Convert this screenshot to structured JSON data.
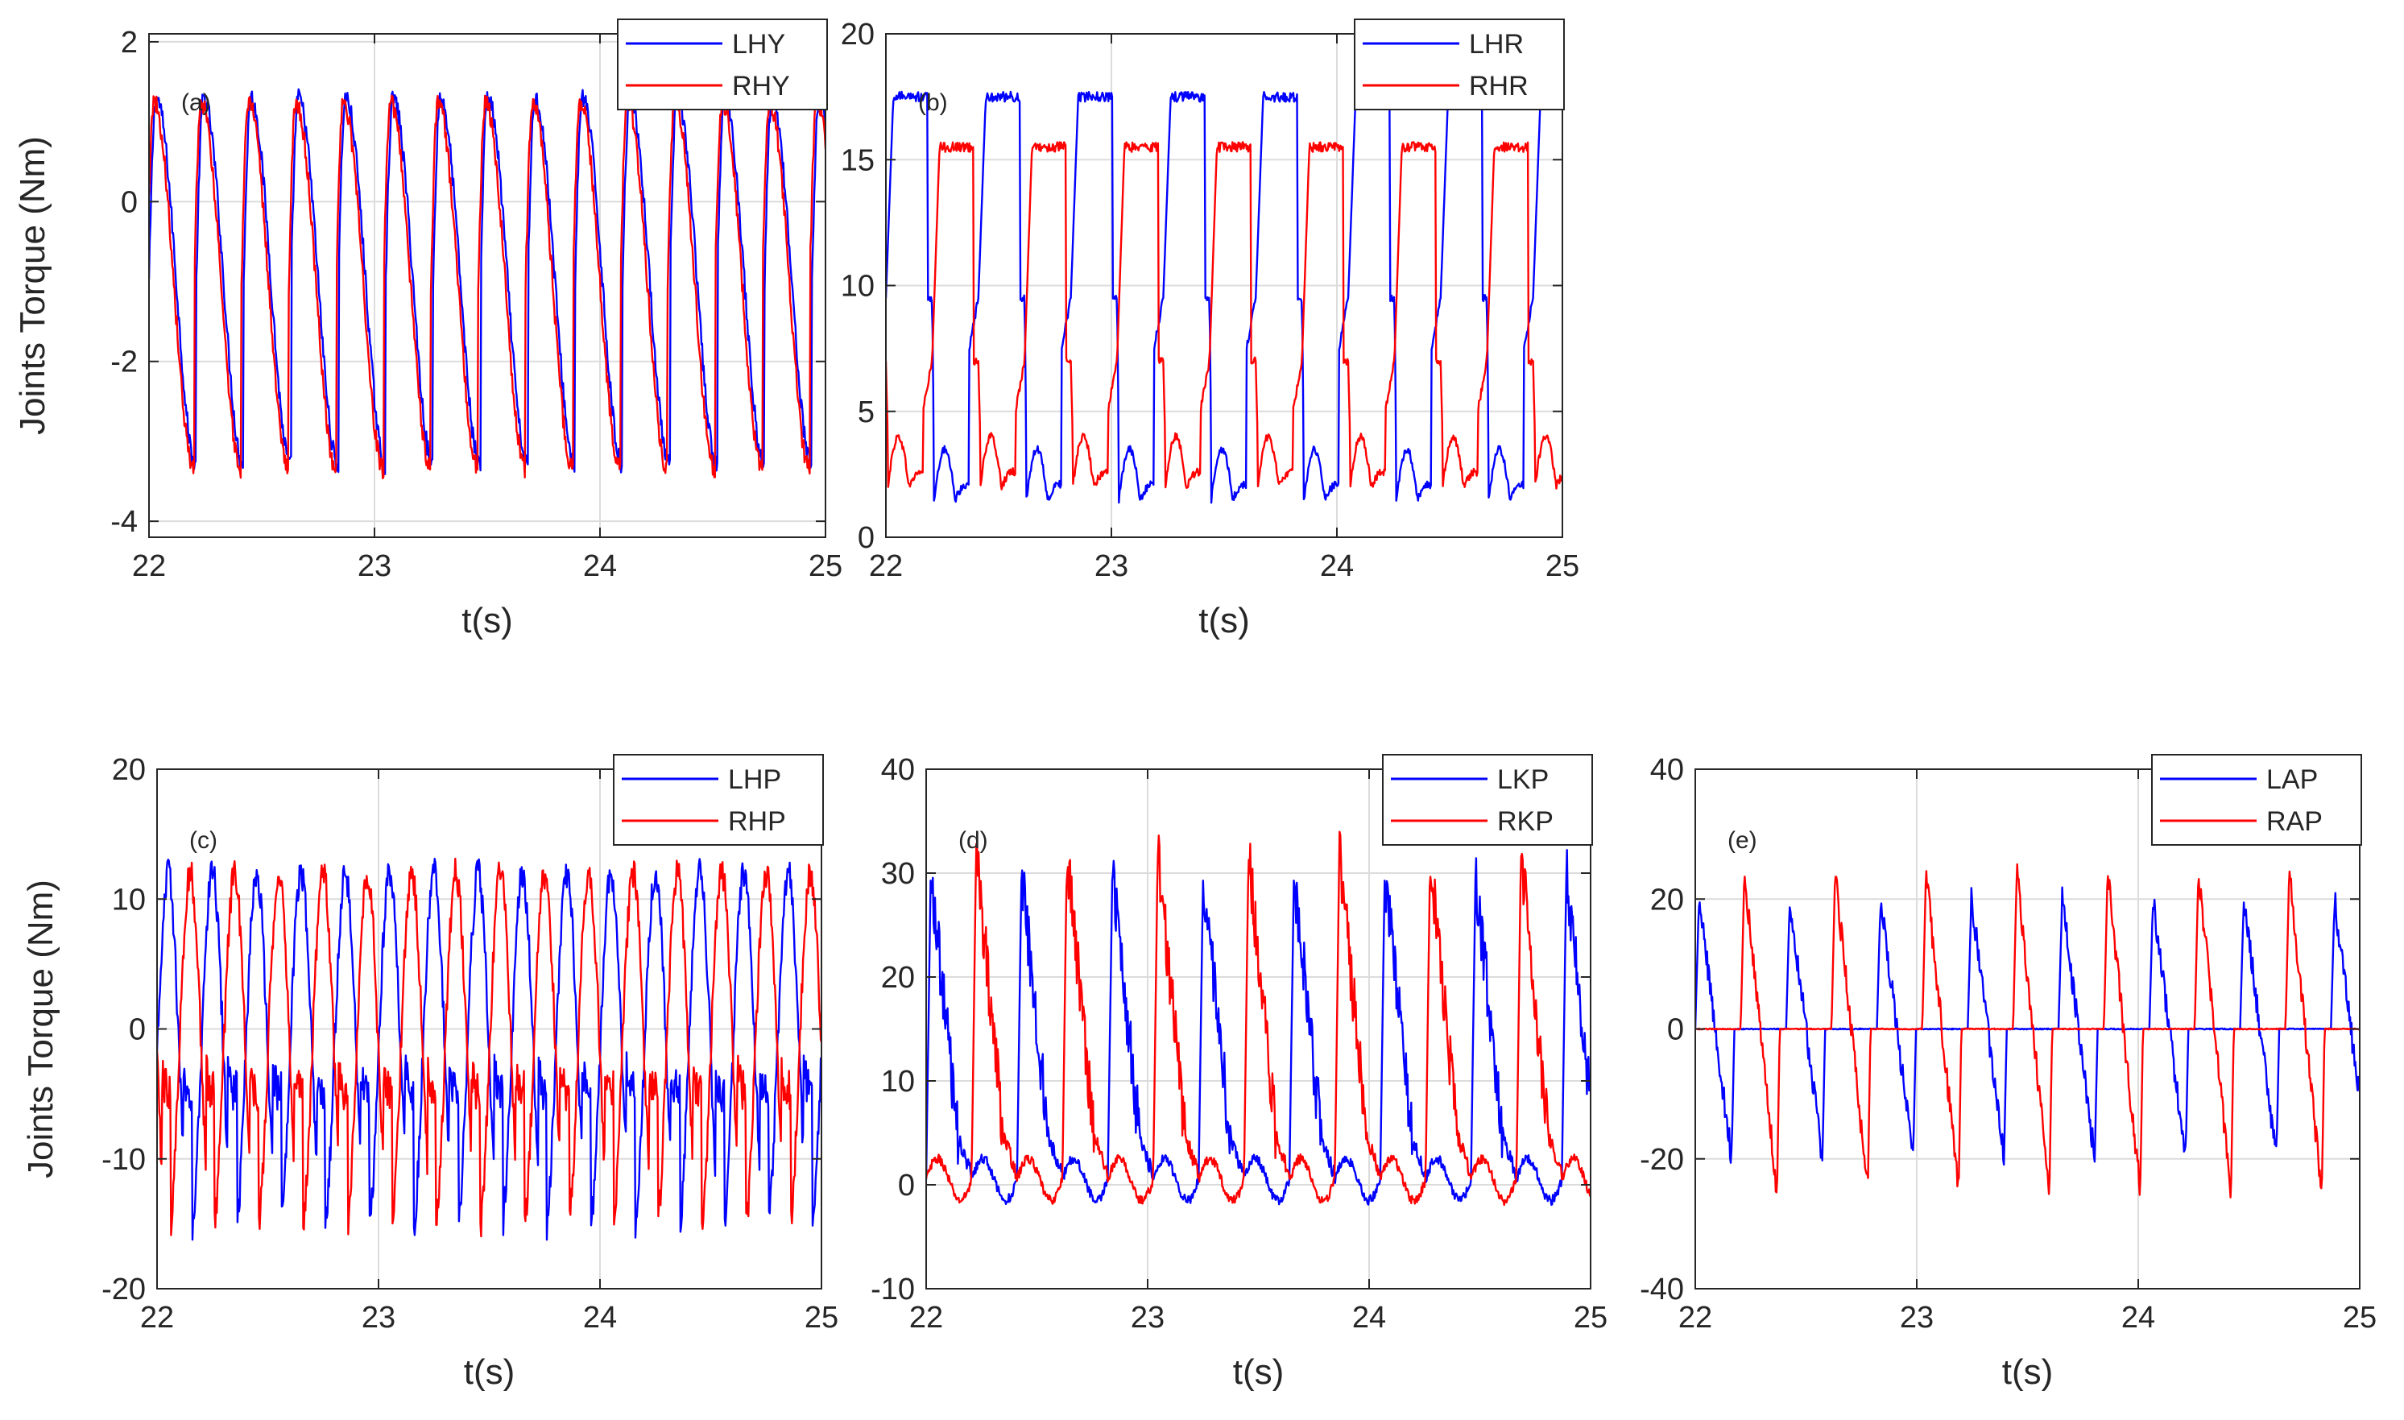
{
  "chart_data": [
    {
      "id": "a",
      "type": "line",
      "panel_label": "(a)",
      "xlabel": "t(s)",
      "ylabel": "Joints Torque (Nm)",
      "xlim": [
        22,
        25
      ],
      "ylim": [
        -4.2,
        2.1
      ],
      "xticks": [
        22,
        23,
        24,
        25
      ],
      "yticks": [
        -4,
        -2,
        0,
        2
      ],
      "grid": true,
      "legend_location": "top-right",
      "series": [
        {
          "name": "LHY",
          "color": "#0000ff",
          "pattern": "hip_yaw",
          "phase": 0.0,
          "amplitude": 2.3,
          "offset": -1.0,
          "period": 0.21,
          "noise": 0.12
        },
        {
          "name": "RHY",
          "color": "#ff0000",
          "pattern": "hip_yaw",
          "phase": 0.01,
          "amplitude": 2.3,
          "offset": -1.05,
          "period": 0.21,
          "noise": 0.12
        }
      ]
    },
    {
      "id": "b",
      "type": "line",
      "panel_label": "(b)",
      "xlabel": "t(s)",
      "ylabel": "",
      "xlim": [
        22,
        25
      ],
      "ylim": [
        0,
        20
      ],
      "xticks": [
        22,
        23,
        24,
        25
      ],
      "yticks": [
        0,
        5,
        10,
        15,
        20
      ],
      "grid": true,
      "legend_location": "top-right",
      "series": [
        {
          "name": "LHR",
          "color": "#0000ff",
          "pattern": "hip_roll",
          "phase": 0.0,
          "low": 1.5,
          "mid": 9.5,
          "high": 17.5,
          "period": 0.41,
          "noise": 0.5
        },
        {
          "name": "RHR",
          "color": "#ff0000",
          "pattern": "hip_roll",
          "phase": 0.205,
          "low": 2.0,
          "mid": 7.0,
          "high": 15.5,
          "period": 0.41,
          "noise": 0.5
        }
      ]
    },
    {
      "id": "c",
      "type": "line",
      "panel_label": "(c)",
      "xlabel": "t(s)",
      "ylabel": "Joints Torque (Nm)",
      "xlim": [
        22,
        25
      ],
      "ylim": [
        -20,
        20
      ],
      "xticks": [
        22,
        23,
        24,
        25
      ],
      "yticks": [
        -20,
        -10,
        0,
        10,
        20
      ],
      "grid": true,
      "legend_location": "top-right",
      "series": [
        {
          "name": "LHP",
          "color": "#0000ff",
          "pattern": "hip_pitch",
          "phase": 0.0,
          "amplitude": 14.0,
          "offset": -2.0,
          "period": 0.2,
          "noise": 1.2
        },
        {
          "name": "RHP",
          "color": "#ff0000",
          "pattern": "hip_pitch",
          "phase": 0.1,
          "amplitude": 14.0,
          "offset": -2.0,
          "period": 0.2,
          "noise": 1.2
        }
      ]
    },
    {
      "id": "d",
      "type": "line",
      "panel_label": "(d)",
      "xlabel": "t(s)",
      "ylabel": "",
      "xlim": [
        22,
        25
      ],
      "ylim": [
        -10,
        40
      ],
      "xticks": [
        22,
        23,
        24,
        25
      ],
      "yticks": [
        -10,
        0,
        10,
        20,
        30,
        40
      ],
      "grid": true,
      "legend_location": "top-right",
      "series": [
        {
          "name": "LKP",
          "color": "#0000ff",
          "pattern": "knee_pitch",
          "phase": 0.0,
          "peak": 30.0,
          "base": 0.5,
          "period": 0.41,
          "noise": 1.5
        },
        {
          "name": "RKP",
          "color": "#ff0000",
          "pattern": "knee_pitch",
          "phase": 0.205,
          "peak": 32.0,
          "base": 0.5,
          "period": 0.41,
          "noise": 1.5
        }
      ]
    },
    {
      "id": "e",
      "type": "line",
      "panel_label": "(e)",
      "xlabel": "t(s)",
      "ylabel": "",
      "xlim": [
        22,
        25
      ],
      "ylim": [
        -40,
        40
      ],
      "xticks": [
        22,
        23,
        24,
        25
      ],
      "yticks": [
        -40,
        -20,
        0,
        20,
        40
      ],
      "grid": true,
      "legend_location": "top-right",
      "series": [
        {
          "name": "LAP",
          "color": "#0000ff",
          "pattern": "ankle_pitch",
          "phase": 0.0,
          "peak": 20.0,
          "trough": -20.0,
          "period": 0.41,
          "noise": 1.0
        },
        {
          "name": "RAP",
          "color": "#ff0000",
          "pattern": "ankle_pitch",
          "phase": 0.205,
          "peak": 24.0,
          "trough": -25.0,
          "period": 0.41,
          "noise": 1.0
        }
      ]
    }
  ]
}
